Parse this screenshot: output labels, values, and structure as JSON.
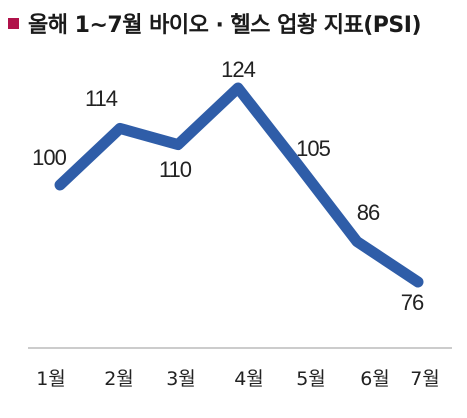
{
  "header": {
    "title": "올해 1~7월 바이오 · 헬스 업황 지표(PSI)",
    "bullet_color": "#b0124a"
  },
  "chart_data": {
    "type": "line",
    "title": "올해 1~7월 바이오 · 헬스 업황 지표(PSI)",
    "categories": [
      "1월",
      "2월",
      "3월",
      "4월",
      "5월",
      "6월",
      "7월"
    ],
    "series": [
      {
        "values": [
          100,
          114,
          110,
          124,
          105,
          86,
          76
        ]
      }
    ],
    "data_labels": [
      "100",
      "114",
      "110",
      "124",
      "105",
      "86",
      "76"
    ],
    "ylim": [
      50,
      135
    ],
    "grid": false,
    "legend": "none",
    "line_color": "#2f5da8"
  }
}
